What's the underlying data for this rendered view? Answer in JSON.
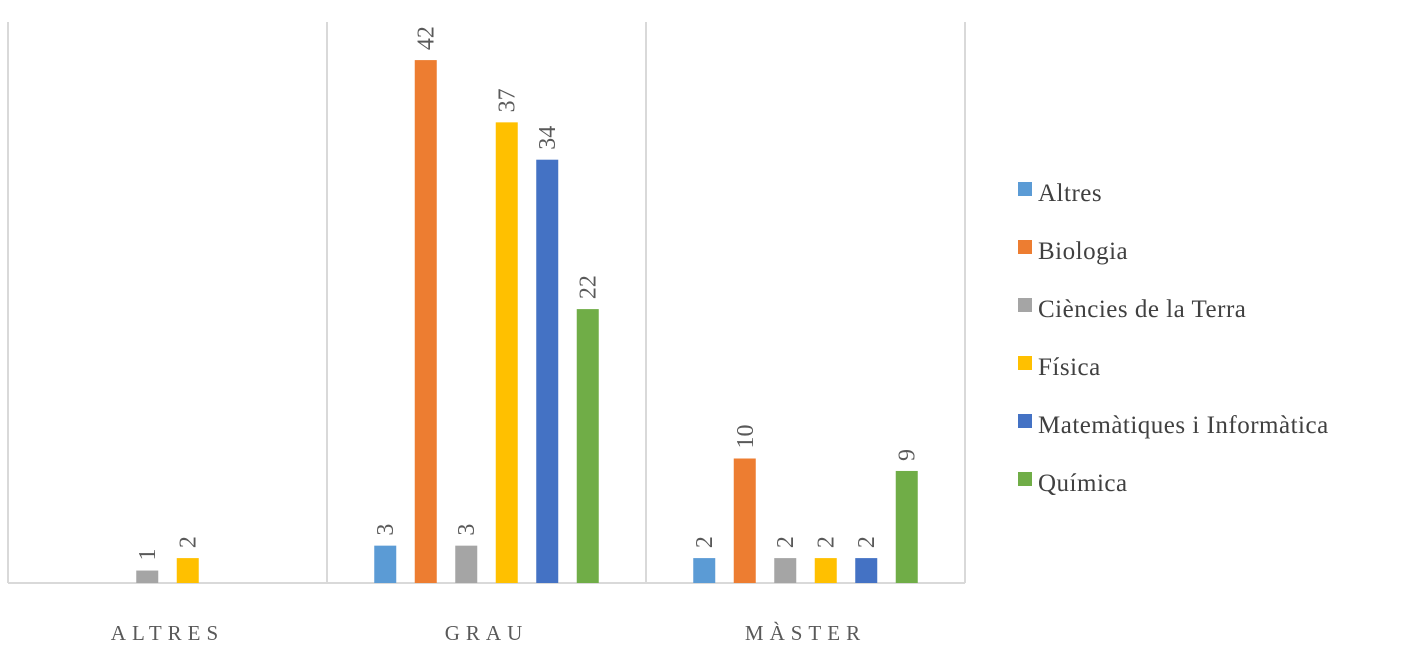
{
  "chart_data": {
    "type": "bar",
    "title": "",
    "xlabel": "",
    "ylabel": "",
    "categories": [
      "ALTRES",
      "GRAU",
      "MÀSTER"
    ],
    "ylim": [
      0,
      45
    ],
    "grid": false,
    "legend_position": "right",
    "series": [
      {
        "name": "Altres",
        "color": "#5B9BD5",
        "values": [
          null,
          3,
          2
        ]
      },
      {
        "name": "Biologia",
        "color": "#ED7D31",
        "values": [
          null,
          42,
          10
        ]
      },
      {
        "name": "Ciències de la Terra",
        "color": "#A5A5A5",
        "values": [
          1,
          3,
          2
        ]
      },
      {
        "name": "Física",
        "color": "#FFC000",
        "values": [
          2,
          37,
          2
        ]
      },
      {
        "name": "Matemàtiques i Informàtica",
        "color": "#4472C4",
        "values": [
          null,
          34,
          2
        ]
      },
      {
        "name": "Química",
        "color": "#70AD47",
        "values": [
          null,
          22,
          9
        ]
      }
    ]
  }
}
